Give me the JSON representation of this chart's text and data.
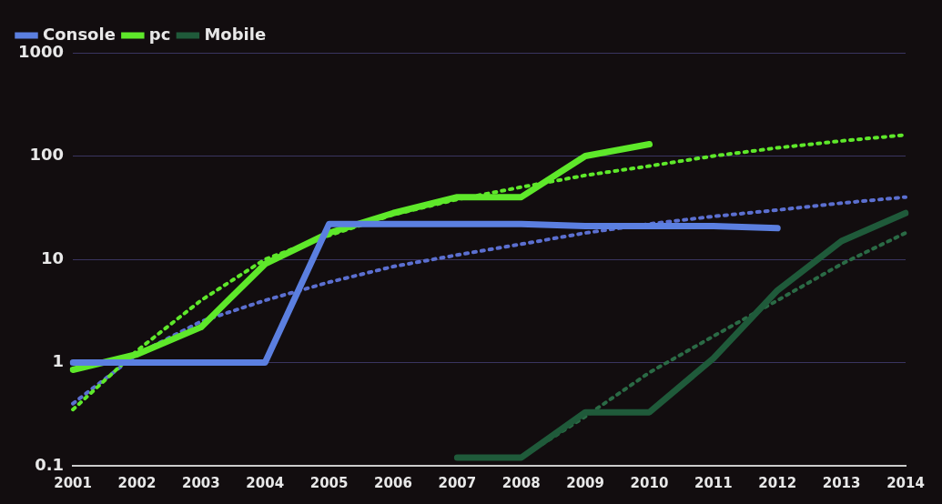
{
  "chart_data": {
    "type": "line",
    "categories": [
      "2001",
      "2002",
      "2003",
      "2004",
      "2005",
      "2006",
      "2007",
      "2008",
      "2009",
      "2010",
      "2011",
      "2012",
      "2013",
      "2014"
    ],
    "series": [
      {
        "name": "Console",
        "color": "#5b7fe0",
        "values": [
          1,
          1,
          1,
          1,
          22,
          22,
          22,
          22,
          21,
          21,
          21,
          20,
          null,
          null
        ]
      },
      {
        "name": "pc",
        "color": "#5ee82a",
        "values": [
          0.85,
          1.2,
          2.2,
          9,
          18,
          28,
          40,
          40,
          100,
          130,
          null,
          null,
          null,
          null
        ]
      },
      {
        "name": "Mobile",
        "color": "#1f5a3a",
        "values": [
          null,
          null,
          null,
          null,
          null,
          null,
          0.12,
          0.12,
          0.33,
          0.33,
          1.1,
          5,
          15,
          28
        ]
      },
      {
        "color": "#5ee82a",
        "line_style": "dotted",
        "values": [
          0.35,
          1.3,
          4,
          10,
          17,
          27,
          38,
          50,
          65,
          80,
          100,
          120,
          140,
          160
        ]
      },
      {
        "color": "#5b6fd0",
        "line_style": "dotted",
        "values": [
          0.4,
          1.2,
          2.5,
          4,
          6,
          8.5,
          11,
          14,
          18,
          22,
          26,
          30,
          35,
          40
        ]
      },
      {
        "color": "#2a6a45",
        "line_style": "dotted",
        "values": [
          null,
          null,
          null,
          null,
          null,
          null,
          null,
          0.12,
          0.3,
          0.8,
          1.8,
          4,
          9,
          18
        ]
      }
    ],
    "log": true,
    "ylim": [
      0.1,
      1000
    ],
    "yticks": [
      0.1,
      1,
      10,
      100,
      1000
    ],
    "grid": "y",
    "legend": "top left",
    "marker": "none",
    "line_style": "solid"
  }
}
